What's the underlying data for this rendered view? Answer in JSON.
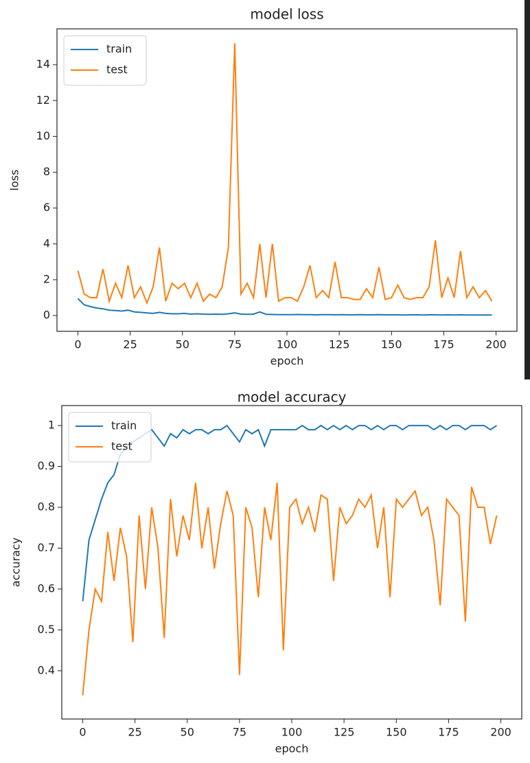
{
  "chart_data": [
    {
      "type": "line",
      "title": "model loss",
      "xlabel": "epoch",
      "ylabel": "loss",
      "x": [
        0,
        3,
        6,
        9,
        12,
        15,
        18,
        21,
        24,
        27,
        30,
        33,
        36,
        39,
        42,
        45,
        48,
        51,
        54,
        57,
        60,
        63,
        66,
        69,
        72,
        75,
        78,
        81,
        84,
        87,
        90,
        93,
        96,
        99,
        102,
        105,
        108,
        111,
        114,
        117,
        120,
        123,
        126,
        129,
        132,
        135,
        138,
        141,
        144,
        147,
        150,
        153,
        156,
        159,
        162,
        165,
        168,
        171,
        174,
        177,
        180,
        183,
        186,
        189,
        192,
        195,
        198
      ],
      "series": [
        {
          "name": "train",
          "color": "#1f77b4",
          "values": [
            0.95,
            0.6,
            0.5,
            0.42,
            0.38,
            0.3,
            0.28,
            0.25,
            0.3,
            0.2,
            0.18,
            0.15,
            0.12,
            0.18,
            0.12,
            0.1,
            0.1,
            0.12,
            0.08,
            0.1,
            0.08,
            0.07,
            0.08,
            0.07,
            0.1,
            0.15,
            0.08,
            0.07,
            0.08,
            0.2,
            0.07,
            0.06,
            0.05,
            0.05,
            0.05,
            0.06,
            0.05,
            0.05,
            0.04,
            0.05,
            0.05,
            0.04,
            0.05,
            0.04,
            0.04,
            0.05,
            0.04,
            0.04,
            0.05,
            0.04,
            0.04,
            0.04,
            0.03,
            0.04,
            0.04,
            0.03,
            0.04,
            0.04,
            0.03,
            0.04,
            0.03,
            0.04,
            0.03,
            0.03,
            0.03,
            0.03,
            0.03
          ]
        },
        {
          "name": "test",
          "color": "#ff7f0e",
          "values": [
            2.5,
            1.2,
            1.0,
            1.0,
            2.6,
            0.8,
            1.8,
            1.0,
            2.8,
            1.0,
            1.6,
            0.7,
            1.6,
            3.8,
            0.8,
            1.8,
            1.5,
            1.8,
            1.0,
            1.8,
            0.8,
            1.2,
            1.0,
            1.6,
            3.8,
            15.2,
            1.2,
            1.8,
            1.0,
            4.0,
            1.0,
            4.0,
            0.8,
            1.0,
            1.0,
            0.8,
            1.6,
            2.8,
            1.0,
            1.4,
            1.0,
            3.0,
            1.0,
            1.0,
            0.9,
            0.9,
            1.5,
            1.0,
            2.7,
            0.9,
            1.0,
            1.7,
            1.0,
            0.9,
            1.0,
            1.0,
            1.6,
            4.2,
            1.0,
            2.1,
            1.0,
            3.6,
            1.0,
            1.6,
            1.0,
            1.4,
            0.8
          ]
        }
      ],
      "xlim": [
        -10,
        210
      ],
      "xticks": [
        0,
        25,
        50,
        75,
        100,
        125,
        150,
        175,
        200
      ],
      "ylim": [
        -0.88,
        16.0
      ],
      "yticks": [
        0,
        2,
        4,
        6,
        8,
        10,
        12,
        14
      ],
      "grid": false,
      "legend": "upper left"
    },
    {
      "type": "line",
      "title": "model accuracy",
      "xlabel": "epoch",
      "ylabel": "accuracy",
      "x": [
        0,
        3,
        6,
        9,
        12,
        15,
        18,
        21,
        24,
        27,
        30,
        33,
        36,
        39,
        42,
        45,
        48,
        51,
        54,
        57,
        60,
        63,
        66,
        69,
        72,
        75,
        78,
        81,
        84,
        87,
        90,
        93,
        96,
        99,
        102,
        105,
        108,
        111,
        114,
        117,
        120,
        123,
        126,
        129,
        132,
        135,
        138,
        141,
        144,
        147,
        150,
        153,
        156,
        159,
        162,
        165,
        168,
        171,
        174,
        177,
        180,
        183,
        186,
        189,
        192,
        195,
        198
      ],
      "series": [
        {
          "name": "train",
          "color": "#1f77b4",
          "values": [
            0.57,
            0.72,
            0.77,
            0.82,
            0.86,
            0.88,
            0.93,
            0.95,
            0.96,
            0.97,
            0.98,
            0.99,
            0.97,
            0.95,
            0.98,
            0.97,
            0.99,
            0.98,
            0.99,
            0.99,
            0.98,
            0.99,
            0.99,
            1.0,
            0.98,
            0.96,
            0.99,
            0.98,
            0.99,
            0.95,
            0.99,
            0.99,
            0.99,
            0.99,
            0.99,
            1.0,
            0.99,
            0.99,
            1.0,
            0.99,
            1.0,
            0.99,
            1.0,
            0.99,
            1.0,
            1.0,
            0.99,
            1.0,
            0.99,
            1.0,
            1.0,
            0.99,
            1.0,
            1.0,
            1.0,
            1.0,
            0.99,
            1.0,
            0.99,
            1.0,
            1.0,
            0.99,
            1.0,
            1.0,
            1.0,
            0.99,
            1.0
          ]
        },
        {
          "name": "test",
          "color": "#ff7f0e",
          "values": [
            0.34,
            0.5,
            0.6,
            0.57,
            0.74,
            0.62,
            0.75,
            0.68,
            0.47,
            0.78,
            0.6,
            0.8,
            0.7,
            0.48,
            0.82,
            0.68,
            0.78,
            0.72,
            0.86,
            0.7,
            0.8,
            0.65,
            0.76,
            0.84,
            0.78,
            0.39,
            0.8,
            0.75,
            0.58,
            0.8,
            0.72,
            0.86,
            0.45,
            0.8,
            0.82,
            0.76,
            0.8,
            0.74,
            0.83,
            0.82,
            0.62,
            0.8,
            0.76,
            0.78,
            0.82,
            0.8,
            0.83,
            0.7,
            0.8,
            0.58,
            0.82,
            0.8,
            0.82,
            0.84,
            0.78,
            0.8,
            0.72,
            0.56,
            0.82,
            0.8,
            0.78,
            0.52,
            0.85,
            0.8,
            0.8,
            0.71,
            0.78
          ]
        }
      ],
      "xlim": [
        -10,
        210
      ],
      "xticks": [
        0,
        25,
        50,
        75,
        100,
        125,
        150,
        175,
        200
      ],
      "ylim": [
        0.282,
        1.049
      ],
      "yticks": [
        0.4,
        0.5,
        0.6,
        0.7,
        0.8,
        0.9,
        1.0
      ],
      "grid": false,
      "legend": "upper left"
    }
  ]
}
